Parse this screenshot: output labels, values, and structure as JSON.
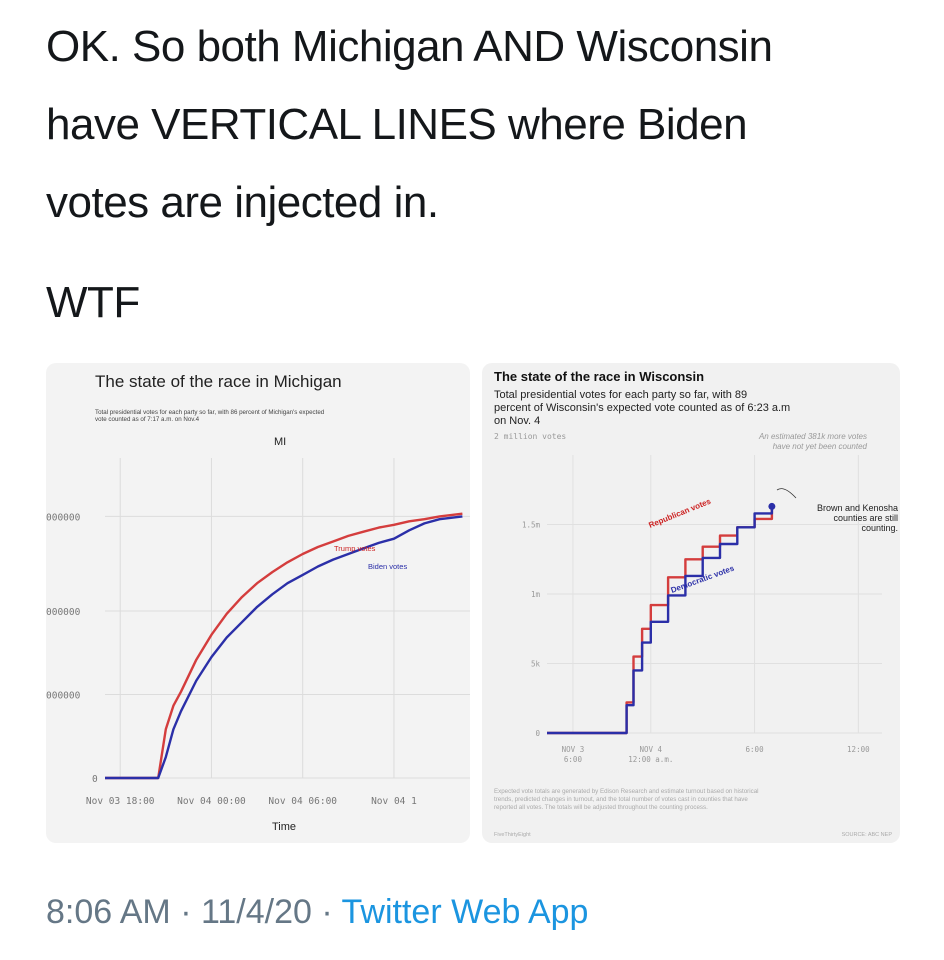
{
  "tweet": {
    "lines": [
      "OK. So both Michigan AND Wisconsin",
      "have VERTICAL LINES where Biden",
      "votes are injected in.",
      "WTF"
    ],
    "time": "8:06 AM",
    "sep1": "·",
    "date": "11/4/20",
    "sep2": "·",
    "app": "Twitter Web App"
  },
  "colors": {
    "republican": "#d43d3d",
    "democratic": "#2b2fa8",
    "link": "#1b95e0",
    "meta": "#657786"
  },
  "chart_data": [
    {
      "type": "line",
      "title": "The state of the race in Michigan",
      "subtitle": "Total presidential votes for each party so far, with 86 percent of Michigan's expected vote counted as of 7:17 a.m. on Nov.4",
      "label": "MI",
      "xlabel": "Time",
      "ylabel": "",
      "xticks": [
        "Nov 03 18:00",
        "Nov 04 00:00",
        "Nov 04 06:00",
        "Nov 04 1"
      ],
      "yticks": [
        "0",
        "000000",
        "000000",
        "000000"
      ],
      "ylim": [
        0,
        2300000
      ],
      "grid": true,
      "annotations": [
        "Trump votes",
        "Biden votes"
      ],
      "series": [
        {
          "name": "Trump votes",
          "color": "#d43d3d",
          "x": [
            0,
            2,
            3.5,
            4,
            4.5,
            5,
            6,
            7,
            8,
            9,
            10,
            11,
            12,
            13,
            14,
            15,
            16,
            17,
            18,
            19,
            20,
            21,
            22,
            23.5
          ],
          "y": [
            0,
            0,
            0,
            350000,
            520000,
            620000,
            850000,
            1030000,
            1180000,
            1300000,
            1400000,
            1480000,
            1550000,
            1610000,
            1660000,
            1700000,
            1740000,
            1770000,
            1800000,
            1820000,
            1845000,
            1860000,
            1880000,
            1900000
          ]
        },
        {
          "name": "Biden votes",
          "color": "#2b2fa8",
          "x": [
            0,
            2,
            3.5,
            4,
            4.5,
            5,
            6,
            7,
            8,
            9,
            10,
            11,
            12,
            13,
            14,
            15,
            16,
            17,
            18,
            19,
            20,
            21,
            22,
            23.5
          ],
          "y": [
            0,
            0,
            0,
            150000,
            350000,
            480000,
            700000,
            870000,
            1010000,
            1120000,
            1230000,
            1320000,
            1400000,
            1460000,
            1520000,
            1570000,
            1610000,
            1650000,
            1690000,
            1720000,
            1780000,
            1830000,
            1860000,
            1880000
          ]
        }
      ]
    },
    {
      "type": "line",
      "title": "The state of the race in Wisconsin",
      "subtitle": "Total presidential votes for each party so far, with 89 percent of Wisconsin's expected vote counted as of 6:23 a.m on Nov. 4",
      "ylabel": "2 million votes",
      "xticks": [
        "NOV 3\n6:00",
        "NOV 4\n12:00 a.m.",
        "6:00",
        "12:00"
      ],
      "yticks": [
        "0",
        "5k",
        "1m",
        "1.5m"
      ],
      "ylim": [
        0,
        2000000
      ],
      "grid": true,
      "annotations": [
        "An estimated 381k more votes have not yet been counted",
        "Brown and Kenosha counties are still counting.",
        "Republican votes",
        "Democratic votes"
      ],
      "series": [
        {
          "name": "Republican votes",
          "color": "#d43d3d",
          "x": [
            0,
            3,
            4.2,
            4.6,
            5,
            5.5,
            6,
            7,
            8,
            9,
            10,
            11,
            12,
            13
          ],
          "y": [
            0,
            0,
            0,
            220000,
            550000,
            750000,
            920000,
            1120000,
            1250000,
            1340000,
            1420000,
            1480000,
            1540000,
            1610000
          ]
        },
        {
          "name": "Democratic votes",
          "color": "#2b2fa8",
          "x": [
            0,
            3,
            4.2,
            4.6,
            5,
            5.5,
            6,
            7,
            8,
            9,
            10,
            11,
            12,
            13
          ],
          "y": [
            0,
            0,
            0,
            200000,
            450000,
            650000,
            800000,
            990000,
            1130000,
            1260000,
            1360000,
            1480000,
            1580000,
            1630000
          ]
        }
      ],
      "footnote": "Expected vote totals are generated by Edison Research and estimate turnout based on historical trends, predicted changes in turnout, and the total number of votes cast in counties that have reported all votes. The totals will be adjusted throughout the counting process.",
      "credit": "FiveThirtyEight",
      "source": "SOURCE: ABC NEP"
    }
  ]
}
